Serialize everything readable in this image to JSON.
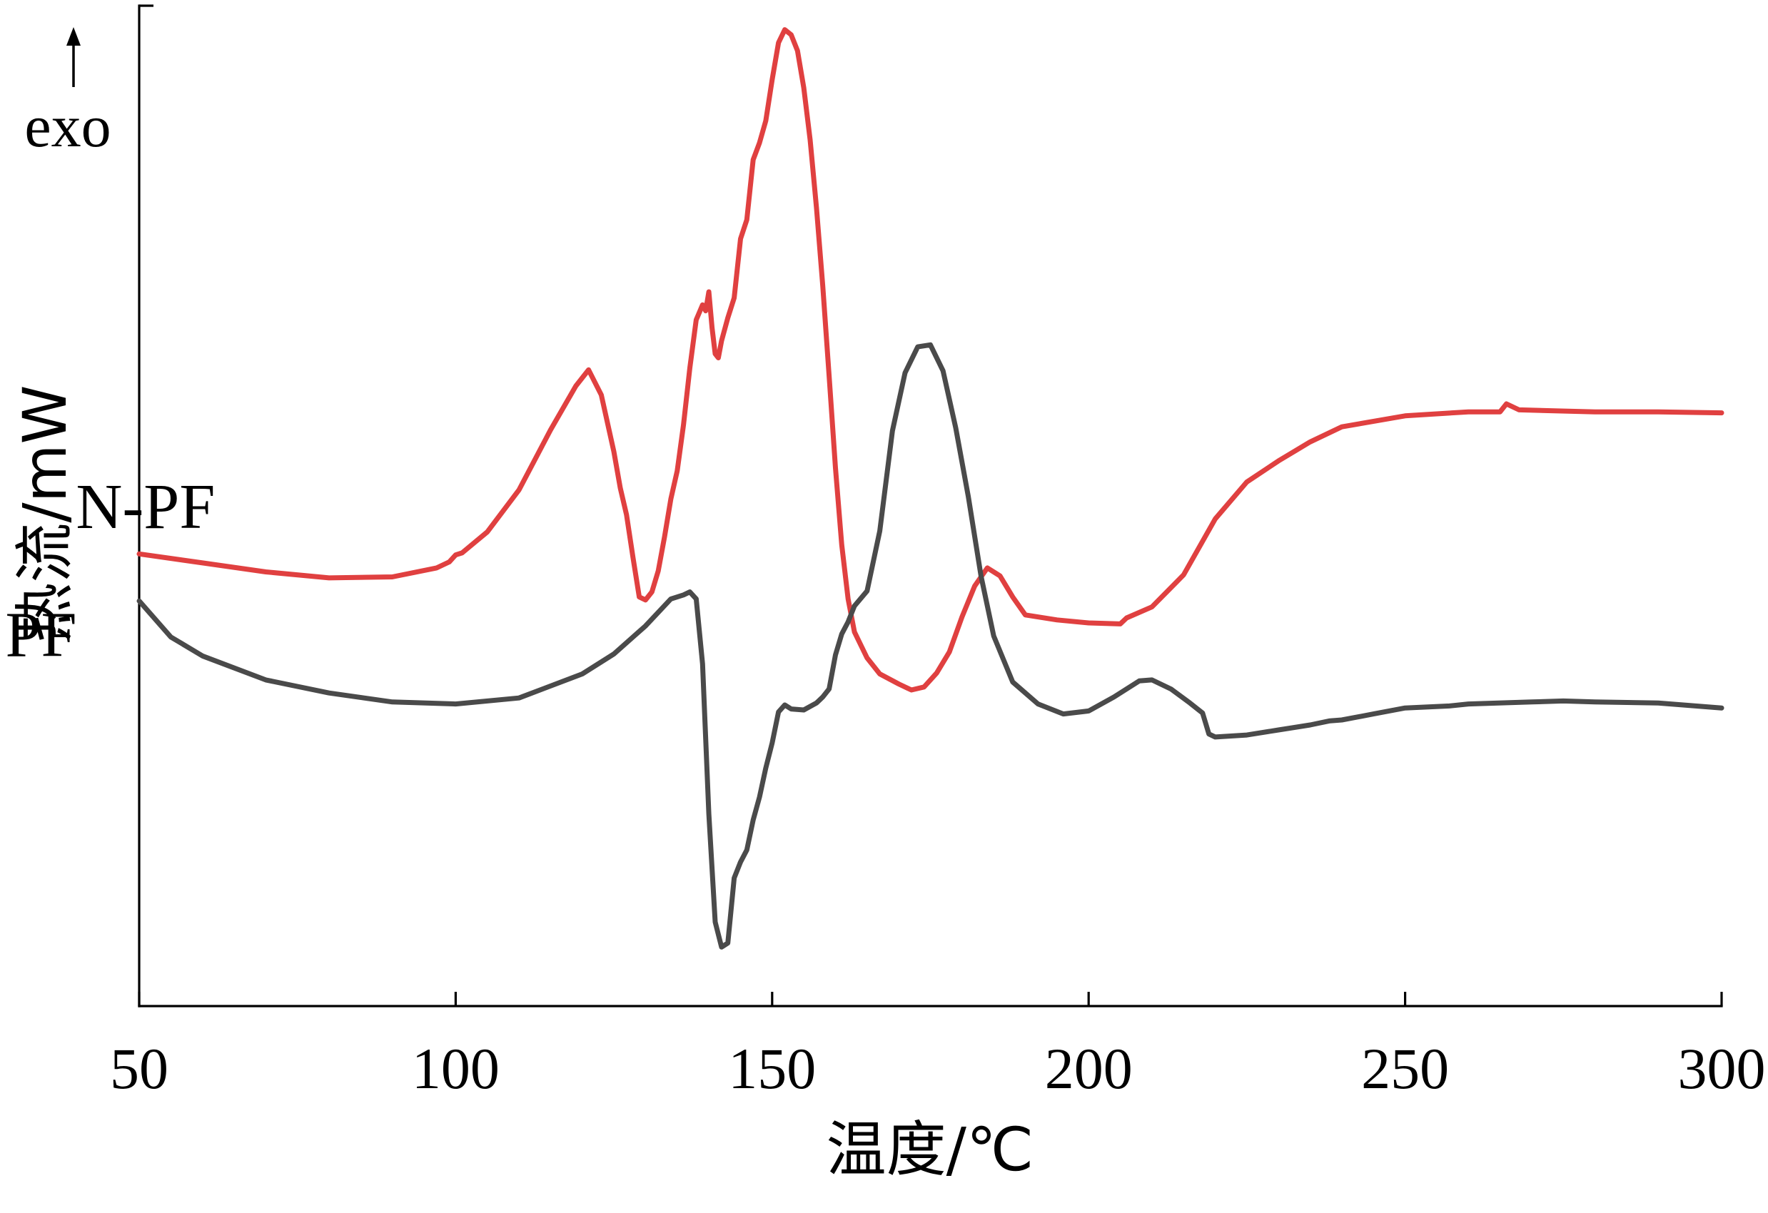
{
  "chart_data": {
    "type": "line",
    "xlabel": "温度/℃",
    "ylabel": "热流/mW",
    "exo_label": "exo",
    "xlim": [
      50,
      300
    ],
    "ylim": [
      0,
      100
    ],
    "y_ticks_shown": false,
    "x_ticks": [
      50,
      100,
      150,
      200,
      250,
      300
    ],
    "x_tick_labels": [
      "50",
      "100",
      "150",
      "200",
      "250",
      "300"
    ],
    "grid": false,
    "series": [
      {
        "name": "N-PF",
        "color": "#e04040",
        "points": [
          [
            50,
            45.2
          ],
          [
            60,
            44.3
          ],
          [
            70,
            43.4
          ],
          [
            80,
            42.8
          ],
          [
            90,
            42.9
          ],
          [
            97,
            43.8
          ],
          [
            99,
            44.4
          ],
          [
            100,
            45.1
          ],
          [
            101,
            45.3
          ],
          [
            105,
            47.4
          ],
          [
            110,
            51.6
          ],
          [
            115,
            57.6
          ],
          [
            119,
            62.0
          ],
          [
            121,
            63.6
          ],
          [
            123,
            61.1
          ],
          [
            125,
            55.4
          ],
          [
            126,
            51.8
          ],
          [
            127,
            49.1
          ],
          [
            128,
            44.9
          ],
          [
            129,
            40.9
          ],
          [
            130,
            40.6
          ],
          [
            131,
            41.4
          ],
          [
            132,
            43.5
          ],
          [
            133,
            46.9
          ],
          [
            134,
            50.7
          ],
          [
            135,
            53.5
          ],
          [
            136,
            58.1
          ],
          [
            137,
            63.8
          ],
          [
            138,
            68.6
          ],
          [
            139,
            70.1
          ],
          [
            139.5,
            69.5
          ],
          [
            140,
            71.4
          ],
          [
            140.5,
            67.8
          ],
          [
            141,
            65.2
          ],
          [
            141.5,
            64.8
          ],
          [
            142,
            66.5
          ],
          [
            143,
            68.8
          ],
          [
            144,
            70.8
          ],
          [
            145,
            76.7
          ],
          [
            146,
            78.6
          ],
          [
            147,
            84.6
          ],
          [
            148,
            86.3
          ],
          [
            149,
            88.5
          ],
          [
            150,
            92.6
          ],
          [
            151,
            96.3
          ],
          [
            152,
            97.6
          ],
          [
            153,
            97.1
          ],
          [
            154,
            95.5
          ],
          [
            155,
            91.8
          ],
          [
            156,
            86.6
          ],
          [
            157,
            79.8
          ],
          [
            158,
            72.0
          ],
          [
            159,
            63.0
          ],
          [
            160,
            53.8
          ],
          [
            161,
            46.1
          ],
          [
            162,
            40.7
          ],
          [
            163,
            37.4
          ],
          [
            165,
            34.8
          ],
          [
            167,
            33.2
          ],
          [
            170,
            32.2
          ],
          [
            172,
            31.6
          ],
          [
            174,
            31.9
          ],
          [
            176,
            33.3
          ],
          [
            178,
            35.4
          ],
          [
            180,
            38.9
          ],
          [
            182,
            42.0
          ],
          [
            184,
            43.8
          ],
          [
            186,
            43.0
          ],
          [
            188,
            40.9
          ],
          [
            190,
            39.1
          ],
          [
            195,
            38.6
          ],
          [
            200,
            38.3
          ],
          [
            205,
            38.2
          ],
          [
            206,
            38.8
          ],
          [
            210,
            39.9
          ],
          [
            215,
            43.1
          ],
          [
            220,
            48.7
          ],
          [
            225,
            52.4
          ],
          [
            230,
            54.5
          ],
          [
            235,
            56.4
          ],
          [
            240,
            57.9
          ],
          [
            250,
            59.0
          ],
          [
            260,
            59.4
          ],
          [
            265,
            59.4
          ],
          [
            266,
            60.2
          ],
          [
            268,
            59.6
          ],
          [
            280,
            59.4
          ],
          [
            290,
            59.4
          ],
          [
            300,
            59.3
          ]
        ]
      },
      {
        "name": "PF",
        "color": "#4a4a4a",
        "points": [
          [
            50,
            40.5
          ],
          [
            55,
            36.9
          ],
          [
            60,
            35.0
          ],
          [
            70,
            32.6
          ],
          [
            80,
            31.3
          ],
          [
            90,
            30.4
          ],
          [
            100,
            30.2
          ],
          [
            110,
            30.8
          ],
          [
            120,
            33.2
          ],
          [
            125,
            35.2
          ],
          [
            130,
            38.0
          ],
          [
            134,
            40.7
          ],
          [
            136,
            41.1
          ],
          [
            137,
            41.4
          ],
          [
            138,
            40.7
          ],
          [
            139,
            34.2
          ],
          [
            140,
            19.2
          ],
          [
            141,
            8.4
          ],
          [
            142,
            5.9
          ],
          [
            143,
            6.3
          ],
          [
            144,
            12.8
          ],
          [
            145,
            14.4
          ],
          [
            146,
            15.6
          ],
          [
            147,
            18.6
          ],
          [
            148,
            20.9
          ],
          [
            149,
            23.8
          ],
          [
            150,
            26.3
          ],
          [
            151,
            29.4
          ],
          [
            152,
            30.1
          ],
          [
            153,
            29.7
          ],
          [
            155,
            29.6
          ],
          [
            157,
            30.3
          ],
          [
            158,
            30.9
          ],
          [
            159,
            31.7
          ],
          [
            160,
            35.1
          ],
          [
            161,
            37.2
          ],
          [
            162,
            38.4
          ],
          [
            163,
            40.0
          ],
          [
            165,
            41.5
          ],
          [
            167,
            47.5
          ],
          [
            169,
            57.5
          ],
          [
            171,
            63.3
          ],
          [
            173,
            65.9
          ],
          [
            175,
            66.1
          ],
          [
            177,
            63.5
          ],
          [
            179,
            57.8
          ],
          [
            181,
            50.9
          ],
          [
            183,
            43.0
          ],
          [
            185,
            37.0
          ],
          [
            188,
            32.4
          ],
          [
            192,
            30.2
          ],
          [
            196,
            29.2
          ],
          [
            200,
            29.5
          ],
          [
            204,
            30.9
          ],
          [
            208,
            32.5
          ],
          [
            210,
            32.6
          ],
          [
            213,
            31.7
          ],
          [
            216,
            30.3
          ],
          [
            218,
            29.3
          ],
          [
            219,
            27.2
          ],
          [
            220,
            26.9
          ],
          [
            225,
            27.1
          ],
          [
            230,
            27.6
          ],
          [
            235,
            28.1
          ],
          [
            238,
            28.5
          ],
          [
            240,
            28.6
          ],
          [
            245,
            29.2
          ],
          [
            250,
            29.8
          ],
          [
            257,
            30.0
          ],
          [
            260,
            30.2
          ],
          [
            270,
            30.4
          ],
          [
            275,
            30.5
          ],
          [
            280,
            30.4
          ],
          [
            290,
            30.3
          ],
          [
            300,
            29.8
          ]
        ]
      }
    ]
  }
}
